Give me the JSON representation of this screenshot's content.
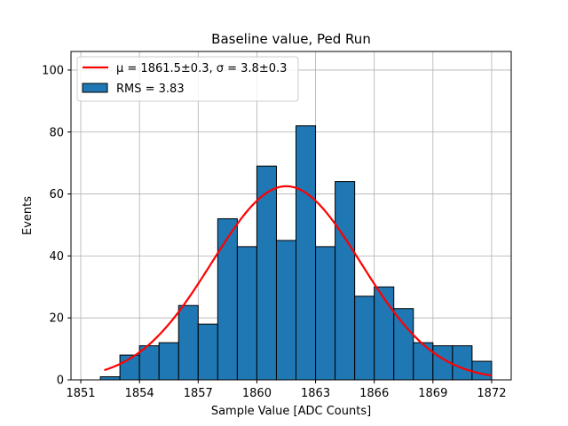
{
  "chart_data": {
    "type": "bar",
    "title": "Baseline value, Ped Run",
    "xlabel": "Sample Value [ADC Counts]",
    "ylabel": "Events",
    "xlim": [
      1850.5,
      1873
    ],
    "ylim": [
      0,
      106
    ],
    "grid": true,
    "x_ticks": [
      1851,
      1854,
      1857,
      1860,
      1863,
      1866,
      1869,
      1872
    ],
    "y_ticks": [
      0,
      20,
      40,
      60,
      80,
      100
    ],
    "bar_color": "#1f77b4",
    "fit_color": "#ff0000",
    "bins": {
      "left_edges": [
        1852,
        1853,
        1854,
        1855,
        1856,
        1857,
        1858,
        1859,
        1860,
        1861,
        1862,
        1863,
        1864,
        1865,
        1866,
        1867,
        1868,
        1869,
        1870,
        1871
      ],
      "width": 1,
      "values": [
        1,
        8,
        11,
        12,
        24,
        18,
        52,
        43,
        69,
        45,
        82,
        43,
        64,
        27,
        30,
        23,
        12,
        11,
        11,
        6
      ]
    },
    "fit": {
      "type": "gaussian",
      "mu": 1861.5,
      "sigma": 3.8,
      "amplitude": 62.5,
      "x_range": [
        1852.2,
        1872
      ]
    },
    "legend": {
      "position": "upper-left",
      "fit_label": "μ = 1861.5±0.3, σ = 3.8±0.3",
      "hist_label": "RMS = 3.83"
    }
  }
}
